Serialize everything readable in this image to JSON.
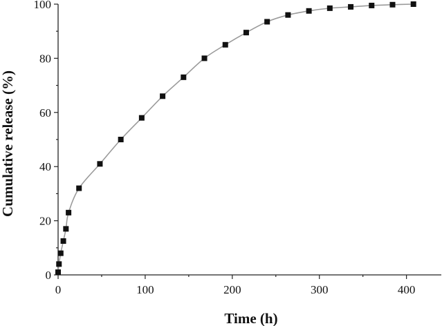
{
  "chart_data": {
    "type": "scatter",
    "xlabel": "Time (h)",
    "ylabel": "Cumulative release (%)",
    "xlim": [
      0,
      440
    ],
    "ylim": [
      0,
      100
    ],
    "x_ticks": [
      0,
      100,
      200,
      300,
      400
    ],
    "y_ticks": [
      0,
      20,
      40,
      60,
      80,
      100
    ],
    "grid": false,
    "legend": "none",
    "fit_line": true,
    "colors": {
      "marker": "#111111",
      "line": "#9a9a9a",
      "axis": "#222222"
    },
    "series": [
      {
        "x": [
          0,
          1,
          3,
          6,
          9,
          12,
          24,
          48,
          72,
          96,
          120,
          144,
          168,
          192,
          216,
          240,
          264,
          288,
          312,
          336,
          360,
          384,
          408
        ],
        "y": [
          1,
          4,
          8,
          12.5,
          17,
          23,
          32,
          41,
          50,
          58,
          66,
          73,
          80,
          85,
          89.5,
          93.5,
          96,
          97.5,
          98.5,
          99,
          99.5,
          99.8,
          100
        ]
      }
    ]
  }
}
